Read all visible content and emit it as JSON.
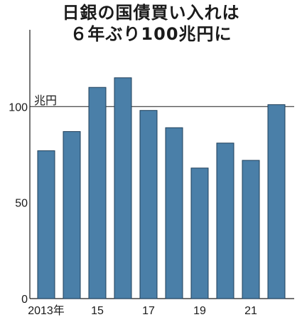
{
  "chart_data": {
    "type": "bar",
    "title_lines": [
      "日銀の国債買い入れは",
      "６年ぶり100兆円に"
    ],
    "unit_label": "兆円",
    "categories": [
      "2013",
      "2014",
      "2015",
      "2016",
      "2017",
      "2018",
      "2019",
      "2020",
      "2021",
      "2022"
    ],
    "values": [
      77,
      87,
      110,
      115,
      98,
      89,
      68,
      81,
      72,
      101
    ],
    "ylim": [
      0,
      140
    ],
    "y_ticks": [
      0,
      50,
      100
    ],
    "x_tick_labels": [
      {
        "category": "2013",
        "label": "2013年"
      },
      {
        "category": "2015",
        "label": "15"
      },
      {
        "category": "2017",
        "label": "17"
      },
      {
        "category": "2019",
        "label": "19"
      },
      {
        "category": "2021",
        "label": "21"
      }
    ],
    "reference_line": 100,
    "bar_color": "#4a7fa8",
    "bar_edge_color": "#1f3f5a"
  }
}
